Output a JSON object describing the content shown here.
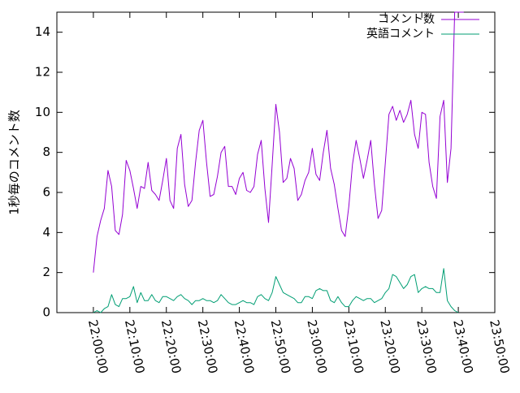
{
  "chart_data": {
    "type": "line",
    "title": "",
    "xlabel": "",
    "ylabel": "1秒毎のコメント数",
    "ylim": [
      0,
      15
    ],
    "yticks": [
      0,
      2,
      4,
      6,
      8,
      10,
      12,
      14
    ],
    "xtick_labels": [
      "22:00:00",
      "22:10:00",
      "22:20:00",
      "22:30:00",
      "22:40:00",
      "22:50:00",
      "23:00:00",
      "23:10:00",
      "23:20:00",
      "23:30:00",
      "23:40:00",
      "23:50:00"
    ],
    "x_unit": "minutes after 22:00:00",
    "xlim": [
      -10,
      110
    ],
    "grid": false,
    "legend_position": "top-right",
    "series": [
      {
        "name": "コメント数",
        "color": "#9400d3",
        "x": [
          0,
          1,
          2,
          3,
          4,
          5,
          6,
          7,
          8,
          9,
          10,
          11,
          12,
          13,
          14,
          15,
          16,
          17,
          18,
          19,
          20,
          21,
          22,
          23,
          24,
          25,
          26,
          27,
          28,
          29,
          30,
          31,
          32,
          33,
          34,
          35,
          36,
          37,
          38,
          39,
          40,
          41,
          42,
          43,
          44,
          45,
          46,
          47,
          48,
          49,
          50,
          51,
          52,
          53,
          54,
          55,
          56,
          57,
          58,
          59,
          60,
          61,
          62,
          63,
          64,
          65,
          66,
          67,
          68,
          69,
          70,
          71,
          72,
          73,
          74,
          75,
          76,
          77,
          78,
          79,
          80,
          81,
          82,
          83,
          84,
          85,
          86,
          87,
          88,
          89,
          90,
          91,
          92,
          93,
          94,
          95,
          96,
          97,
          98,
          99,
          100,
          101,
          101.5
        ],
        "values": [
          2.0,
          3.8,
          4.6,
          5.2,
          7.1,
          6.3,
          4.1,
          3.9,
          4.9,
          7.6,
          7.1,
          6.2,
          5.2,
          6.3,
          6.2,
          7.5,
          6.1,
          5.9,
          5.6,
          6.6,
          7.7,
          5.6,
          5.2,
          8.2,
          8.9,
          6.4,
          5.3,
          5.6,
          7.5,
          9.1,
          9.6,
          7.5,
          5.8,
          5.9,
          6.8,
          8.0,
          8.3,
          6.3,
          6.3,
          5.9,
          6.7,
          7.0,
          6.1,
          6.0,
          6.3,
          7.9,
          8.6,
          6.2,
          4.5,
          7.4,
          10.4,
          9.0,
          6.5,
          6.7,
          7.7,
          7.2,
          5.6,
          5.9,
          6.6,
          7.0,
          8.2,
          6.9,
          6.6,
          8.0,
          9.1,
          7.2,
          6.4,
          5.2,
          4.1,
          3.8,
          5.3,
          7.4,
          8.6,
          7.7,
          6.7,
          7.6,
          8.6,
          6.4,
          4.7,
          5.1,
          7.5,
          9.9,
          10.3,
          9.6,
          10.1,
          9.5,
          9.9,
          10.6,
          8.9,
          8.2,
          10.0,
          9.9,
          7.5,
          6.3,
          5.7,
          9.8,
          10.6,
          6.5,
          8.2,
          15.0,
          15.0,
          15.0,
          15.0
        ]
      },
      {
        "name": "英語コメント",
        "color": "#009e73",
        "x": [
          0,
          1,
          2,
          3,
          4,
          5,
          6,
          7,
          8,
          9,
          10,
          11,
          12,
          13,
          14,
          15,
          16,
          17,
          18,
          19,
          20,
          21,
          22,
          23,
          24,
          25,
          26,
          27,
          28,
          29,
          30,
          31,
          32,
          33,
          34,
          35,
          36,
          37,
          38,
          39,
          40,
          41,
          42,
          43,
          44,
          45,
          46,
          47,
          48,
          49,
          50,
          51,
          52,
          53,
          54,
          55,
          56,
          57,
          58,
          59,
          60,
          61,
          62,
          63,
          64,
          65,
          66,
          67,
          68,
          69,
          70,
          71,
          72,
          73,
          74,
          75,
          76,
          77,
          78,
          79,
          80,
          81,
          82,
          83,
          84,
          85,
          86,
          87,
          88,
          89,
          90,
          91,
          92,
          93,
          94,
          95,
          96,
          97,
          98,
          99,
          100
        ],
        "values": [
          0.0,
          0.1,
          0.0,
          0.2,
          0.3,
          0.9,
          0.4,
          0.3,
          0.7,
          0.7,
          0.8,
          1.3,
          0.5,
          1.0,
          0.6,
          0.6,
          0.9,
          0.6,
          0.5,
          0.8,
          0.8,
          0.7,
          0.6,
          0.8,
          0.9,
          0.7,
          0.6,
          0.4,
          0.6,
          0.6,
          0.7,
          0.6,
          0.6,
          0.5,
          0.6,
          0.9,
          0.7,
          0.5,
          0.4,
          0.4,
          0.5,
          0.6,
          0.5,
          0.5,
          0.4,
          0.8,
          0.9,
          0.7,
          0.6,
          1.0,
          1.8,
          1.4,
          1.0,
          0.9,
          0.8,
          0.7,
          0.5,
          0.5,
          0.8,
          0.8,
          0.7,
          1.1,
          1.2,
          1.1,
          1.1,
          0.6,
          0.5,
          0.8,
          0.5,
          0.3,
          0.3,
          0.6,
          0.8,
          0.7,
          0.6,
          0.7,
          0.7,
          0.5,
          0.6,
          0.7,
          1.0,
          1.2,
          1.9,
          1.8,
          1.5,
          1.2,
          1.4,
          1.8,
          1.9,
          1.0,
          1.2,
          1.3,
          1.2,
          1.2,
          1.0,
          1.0,
          2.2,
          0.6,
          0.3,
          0.1,
          0.0
        ]
      }
    ]
  }
}
